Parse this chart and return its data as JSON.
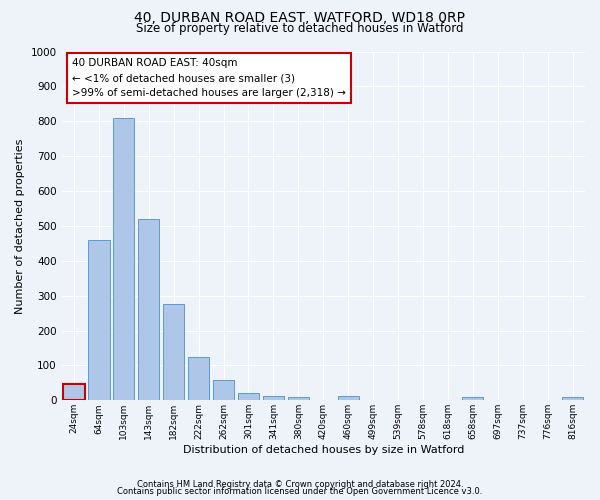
{
  "title": "40, DURBAN ROAD EAST, WATFORD, WD18 0RP",
  "subtitle": "Size of property relative to detached houses in Watford",
  "xlabel": "Distribution of detached houses by size in Watford",
  "ylabel": "Number of detached properties",
  "bar_labels": [
    "24sqm",
    "64sqm",
    "103sqm",
    "143sqm",
    "182sqm",
    "222sqm",
    "262sqm",
    "301sqm",
    "341sqm",
    "380sqm",
    "420sqm",
    "460sqm",
    "499sqm",
    "539sqm",
    "578sqm",
    "618sqm",
    "658sqm",
    "697sqm",
    "737sqm",
    "776sqm",
    "816sqm"
  ],
  "bar_values": [
    46,
    460,
    810,
    520,
    275,
    123,
    58,
    22,
    13,
    10,
    0,
    12,
    0,
    0,
    0,
    0,
    10,
    0,
    0,
    0,
    10
  ],
  "bar_color": "#aec6e8",
  "bar_edge_color": "#5b9bd5",
  "highlight_bar_index": 0,
  "highlight_bar_edge_color": "#cc0000",
  "annotation_box_text": "40 DURBAN ROAD EAST: 40sqm\n← <1% of detached houses are smaller (3)\n>99% of semi-detached houses are larger (2,318) →",
  "ylim": [
    0,
    1000
  ],
  "yticks": [
    0,
    100,
    200,
    300,
    400,
    500,
    600,
    700,
    800,
    900,
    1000
  ],
  "bg_color": "#eef2f9",
  "grid_color": "#ffffff",
  "footer_line1": "Contains HM Land Registry data © Crown copyright and database right 2024.",
  "footer_line2": "Contains public sector information licensed under the Open Government Licence v3.0."
}
